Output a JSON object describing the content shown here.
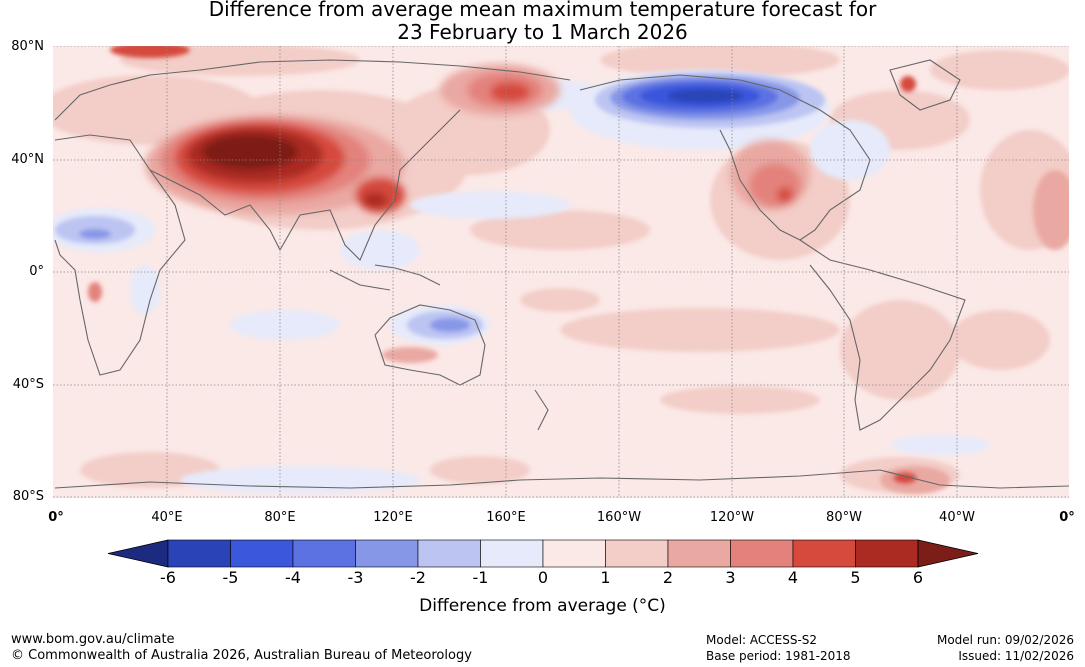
{
  "title": {
    "line1": "Difference from average mean maximum temperature forecast for",
    "line2": "23 February to 1 March 2026"
  },
  "axes": {
    "lat_labels": [
      "80°N",
      "40°N",
      "0°",
      "40°S",
      "80°S"
    ],
    "lon_labels": [
      "0°",
      "40°E",
      "80°E",
      "120°E",
      "160°E",
      "160°W",
      "120°W",
      "80°W",
      "40°W",
      "0°"
    ]
  },
  "colorbar": {
    "ticks": [
      "-6",
      "-5",
      "-4",
      "-3",
      "-2",
      "-1",
      "0",
      "1",
      "2",
      "3",
      "4",
      "5",
      "6"
    ],
    "colors": [
      "#1c2a80",
      "#2a44b8",
      "#3b57dc",
      "#5c72e2",
      "#8797e8",
      "#bcc4f2",
      "#e6eafa",
      "#fbe9e7",
      "#f3cdc8",
      "#eaa8a2",
      "#e3827c",
      "#d64a3e",
      "#ab2a22",
      "#7d1d18"
    ],
    "label": "Difference from average (°C)"
  },
  "footer": {
    "url": "www.bom.gov.au/climate",
    "copyright": "© Commonwealth of Australia 2026, Australian Bureau of Meteorology",
    "model": "Model: ACCESS-S2",
    "base_period": "Base period: 1981-2018",
    "model_run": "Model run: 09/02/2026",
    "issued": "Issued: 11/02/2026"
  }
}
